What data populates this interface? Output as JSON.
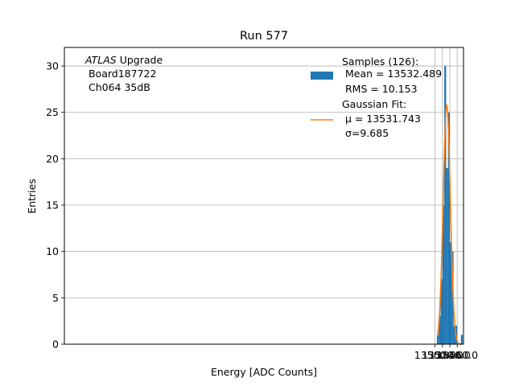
{
  "chart_data": {
    "type": "bar",
    "title": "Run 577",
    "xlabel": "Energy [ADC Counts]",
    "ylabel": "Entries",
    "xlim": [
      12497.5,
      13577.0
    ],
    "ylim": [
      0,
      32
    ],
    "grid": true,
    "x_ticks": [
      13500.0,
      13520.0,
      13540.0,
      13560.0
    ],
    "x_tick_labels": [
      "13500.0",
      "13520.0",
      "13540.0",
      "13560.0"
    ],
    "y_ticks": [
      0,
      5,
      10,
      15,
      20,
      25,
      30
    ],
    "y_tick_labels": [
      "0",
      "5",
      "10",
      "15",
      "20",
      "25",
      "30"
    ],
    "bin_edges": [
      13505,
      13510,
      13515,
      13520,
      13525,
      13530,
      13535,
      13540,
      13545,
      13550,
      13555,
      13560,
      13565,
      13570,
      13575
    ],
    "series": [
      {
        "name": "Samples (126):",
        "type": "histogram",
        "color": "#1f77b4",
        "counts": [
          1,
          3,
          7,
          15,
          30,
          19,
          25,
          11,
          10,
          2,
          2,
          0,
          0,
          1
        ]
      },
      {
        "name": "Gaussian Fit:",
        "type": "line",
        "color": "#ff7f0e",
        "mu": 13531.743,
        "sigma": 9.685,
        "amplitude": 25.8,
        "x_range": [
          13506.5,
          13572.0
        ]
      }
    ],
    "legend": {
      "placement": "top-right",
      "entries": [
        {
          "lines": [
            "Samples (126):",
            " Mean = 13532.489",
            " RMS = 10.153"
          ]
        },
        {
          "lines": [
            "Gaussian Fit:",
            " μ = 13531.743",
            " σ=9.685"
          ]
        }
      ]
    },
    "annotation": {
      "placement": "top-left",
      "lines": [
        "ATLAS Upgrade",
        " Board187722",
        " Ch064 35dB"
      ]
    }
  }
}
